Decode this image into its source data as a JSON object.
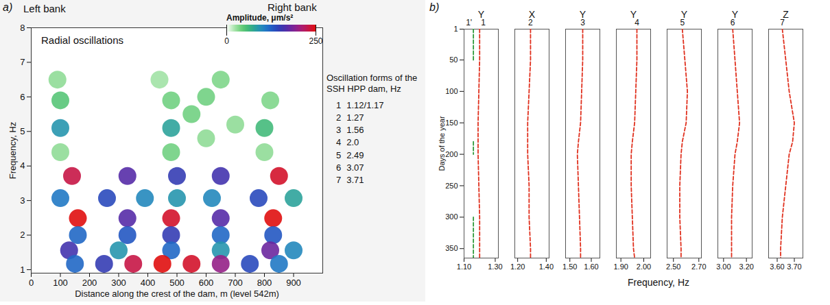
{
  "chart_data": [
    {
      "type": "heatmap",
      "panel": "a)",
      "title": "Radial oscillations",
      "left_label": "Left bank",
      "right_label": "Right bank",
      "x_label": "Distance along the crest of the dam, m (level 542m)",
      "y_label": "Frequency, Hz",
      "xlim": [
        0,
        1000
      ],
      "xticks": [
        0,
        100,
        200,
        300,
        400,
        500,
        600,
        700,
        800,
        900
      ],
      "ylim": [
        0.9,
        8
      ],
      "yticks": [
        1,
        2,
        3,
        4,
        5,
        6,
        7,
        8
      ],
      "colorbar": {
        "label": "Amplitude, μm/s²",
        "range": [
          0,
          250
        ],
        "ticks": [
          0,
          250
        ]
      },
      "cells": [
        {
          "distance": 90,
          "frequency": 6.5,
          "amplitude": 30
        },
        {
          "distance": 440,
          "frequency": 6.5,
          "amplitude": 25
        },
        {
          "distance": 650,
          "frequency": 6.5,
          "amplitude": 35
        },
        {
          "distance": 600,
          "frequency": 6.0,
          "amplitude": 40
        },
        {
          "distance": 100,
          "frequency": 5.9,
          "amplitude": 50
        },
        {
          "distance": 480,
          "frequency": 5.9,
          "amplitude": 40
        },
        {
          "distance": 820,
          "frequency": 5.9,
          "amplitude": 35
        },
        {
          "distance": 550,
          "frequency": 5.5,
          "amplitude": 40
        },
        {
          "distance": 700,
          "frequency": 5.2,
          "amplitude": 30
        },
        {
          "distance": 100,
          "frequency": 5.1,
          "amplitude": 90
        },
        {
          "distance": 480,
          "frequency": 5.1,
          "amplitude": 80
        },
        {
          "distance": 800,
          "frequency": 5.1,
          "amplitude": 60
        },
        {
          "distance": 600,
          "frequency": 4.8,
          "amplitude": 30
        },
        {
          "distance": 100,
          "frequency": 4.4,
          "amplitude": 30
        },
        {
          "distance": 480,
          "frequency": 4.4,
          "amplitude": 40
        },
        {
          "distance": 800,
          "frequency": 4.4,
          "amplitude": 30
        },
        {
          "distance": 140,
          "frequency": 3.71,
          "amplitude": 230
        },
        {
          "distance": 330,
          "frequency": 3.71,
          "amplitude": 170
        },
        {
          "distance": 500,
          "frequency": 3.71,
          "amplitude": 150
        },
        {
          "distance": 650,
          "frequency": 3.71,
          "amplitude": 160
        },
        {
          "distance": 850,
          "frequency": 3.71,
          "amplitude": 240
        },
        {
          "distance": 100,
          "frequency": 3.07,
          "amplitude": 110
        },
        {
          "distance": 260,
          "frequency": 3.07,
          "amplitude": 140
        },
        {
          "distance": 390,
          "frequency": 3.07,
          "amplitude": 100
        },
        {
          "distance": 500,
          "frequency": 3.07,
          "amplitude": 90
        },
        {
          "distance": 620,
          "frequency": 3.07,
          "amplitude": 100
        },
        {
          "distance": 780,
          "frequency": 3.07,
          "amplitude": 140
        },
        {
          "distance": 900,
          "frequency": 3.07,
          "amplitude": 80
        },
        {
          "distance": 160,
          "frequency": 2.49,
          "amplitude": 250
        },
        {
          "distance": 330,
          "frequency": 2.49,
          "amplitude": 170
        },
        {
          "distance": 480,
          "frequency": 2.49,
          "amplitude": 240
        },
        {
          "distance": 650,
          "frequency": 2.49,
          "amplitude": 170
        },
        {
          "distance": 830,
          "frequency": 2.49,
          "amplitude": 250
        },
        {
          "distance": 160,
          "frequency": 2.0,
          "amplitude": 120
        },
        {
          "distance": 330,
          "frequency": 2.0,
          "amplitude": 130
        },
        {
          "distance": 480,
          "frequency": 2.0,
          "amplitude": 150
        },
        {
          "distance": 650,
          "frequency": 2.0,
          "amplitude": 120
        },
        {
          "distance": 830,
          "frequency": 2.0,
          "amplitude": 130
        },
        {
          "distance": 130,
          "frequency": 1.56,
          "amplitude": 160
        },
        {
          "distance": 300,
          "frequency": 1.56,
          "amplitude": 90
        },
        {
          "distance": 480,
          "frequency": 1.56,
          "amplitude": 120
        },
        {
          "distance": 650,
          "frequency": 1.56,
          "amplitude": 90
        },
        {
          "distance": 820,
          "frequency": 1.56,
          "amplitude": 180
        },
        {
          "distance": 900,
          "frequency": 1.56,
          "amplitude": 100
        },
        {
          "distance": 150,
          "frequency": 1.17,
          "amplitude": 120
        },
        {
          "distance": 250,
          "frequency": 1.17,
          "amplitude": 150
        },
        {
          "distance": 350,
          "frequency": 1.17,
          "amplitude": 230
        },
        {
          "distance": 450,
          "frequency": 1.17,
          "amplitude": 250
        },
        {
          "distance": 550,
          "frequency": 1.17,
          "amplitude": 240
        },
        {
          "distance": 650,
          "frequency": 1.17,
          "amplitude": 200
        },
        {
          "distance": 750,
          "frequency": 1.17,
          "amplitude": 140
        },
        {
          "distance": 850,
          "frequency": 1.17,
          "amplitude": 110
        }
      ],
      "forms": {
        "title": "Oscillation forms of the SSH HPP dam, Hz",
        "rows": [
          [
            "1",
            "1.12/1.17"
          ],
          [
            "2",
            "1.27"
          ],
          [
            "3",
            "1.56"
          ],
          [
            "4",
            "2.0"
          ],
          [
            "5",
            "2.49"
          ],
          [
            "6",
            "3.07"
          ],
          [
            "7",
            "3.71"
          ]
        ]
      }
    },
    {
      "type": "line",
      "panel": "b)",
      "x_label": "Frequency, Hz",
      "y_label": "Days of the year",
      "ylim": [
        1,
        365
      ],
      "yticks": [
        1,
        50,
        100,
        150,
        200,
        250,
        300,
        350
      ],
      "days": [
        1,
        50,
        100,
        150,
        180,
        200,
        250,
        300,
        350,
        365
      ],
      "panels": [
        {
          "component": "Y",
          "xlim": [
            1.1,
            1.32
          ],
          "xticks": [
            1.1,
            1.3
          ],
          "series": [
            {
              "name": "1'",
              "color": "#2e9a3a",
              "line_style": "dashed",
              "values": [
                1.16,
                1.16,
                null,
                null,
                1.16,
                1.16,
                null,
                1.16,
                1.16,
                1.16
              ]
            },
            {
              "name": "1",
              "color": "#e0301e",
              "line_style": "dashed",
              "values": [
                1.2,
                1.2,
                1.195,
                1.19,
                1.19,
                1.19,
                1.195,
                1.2,
                1.2,
                1.2
              ]
            }
          ]
        },
        {
          "component": "X",
          "xlim": [
            1.18,
            1.42
          ],
          "xticks": [
            1.2,
            1.4
          ],
          "series": [
            {
              "name": "2",
              "color": "#e0301e",
              "line_style": "dashed",
              "values": [
                1.29,
                1.29,
                1.28,
                1.27,
                1.27,
                1.27,
                1.28,
                1.28,
                1.29,
                1.29
              ]
            }
          ]
        },
        {
          "component": "Y",
          "xlim": [
            1.48,
            1.64
          ],
          "xticks": [
            1.5,
            1.6
          ],
          "series": [
            {
              "name": "3",
              "color": "#e0301e",
              "line_style": "dashed",
              "values": [
                1.56,
                1.56,
                1.555,
                1.55,
                1.54,
                1.535,
                1.54,
                1.545,
                1.55,
                1.55
              ]
            }
          ]
        },
        {
          "component": "Y",
          "xlim": [
            1.88,
            2.03
          ],
          "xticks": [
            1.9,
            2
          ],
          "series": [
            {
              "name": "4",
              "color": "#e0301e",
              "line_style": "dashed",
              "values": [
                1.97,
                1.97,
                1.965,
                1.96,
                1.95,
                1.945,
                1.945,
                1.95,
                1.955,
                1.96
              ]
            }
          ]
        },
        {
          "component": "Y",
          "xlim": [
            2.45,
            2.72
          ],
          "xticks": [
            2.5,
            2.7
          ],
          "series": [
            {
              "name": "5",
              "color": "#e0301e",
              "line_style": "dashed",
              "values": [
                2.57,
                2.59,
                2.61,
                2.6,
                2.57,
                2.56,
                2.55,
                2.55,
                2.56,
                2.56
              ]
            }
          ]
        },
        {
          "component": "Y",
          "xlim": [
            2.95,
            3.25
          ],
          "xticks": [
            3,
            3.2
          ],
          "series": [
            {
              "name": "6",
              "color": "#e0301e",
              "line_style": "dashed",
              "values": [
                3.08,
                3.1,
                3.12,
                3.14,
                3.12,
                3.1,
                3.08,
                3.07,
                3.07,
                3.07
              ]
            }
          ]
        },
        {
          "component": "Z",
          "xlim": [
            3.55,
            3.75
          ],
          "xticks": [
            3.6,
            3.7
          ],
          "series": [
            {
              "name": "7",
              "color": "#e0301e",
              "line_style": "dashed",
              "values": [
                3.63,
                3.65,
                3.67,
                3.7,
                3.69,
                3.67,
                3.65,
                3.63,
                3.62,
                3.62
              ]
            }
          ]
        }
      ]
    }
  ]
}
